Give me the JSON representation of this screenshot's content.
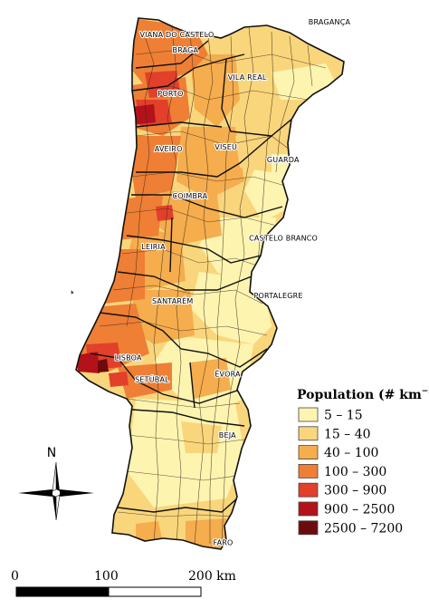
{
  "map": {
    "cities": [
      {
        "name": "VIANA DO CASTELO",
        "lon": -8.83,
        "lat": 41.69
      },
      {
        "name": "BRAGA",
        "lon": -8.43,
        "lat": 41.55
      },
      {
        "name": "VILA REAL",
        "lon": -7.75,
        "lat": 41.3
      },
      {
        "name": "BRAGANÇA",
        "lon": -6.76,
        "lat": 41.81
      },
      {
        "name": "PORTO",
        "lon": -8.61,
        "lat": 41.15
      },
      {
        "name": "VISEU",
        "lon": -7.91,
        "lat": 40.66
      },
      {
        "name": "AVEIRO",
        "lon": -8.65,
        "lat": 40.64
      },
      {
        "name": "GUARDA",
        "lon": -7.27,
        "lat": 40.54
      },
      {
        "name": "COIMBRA",
        "lon": -8.43,
        "lat": 40.21
      },
      {
        "name": "CASTELO BRANCO",
        "lon": -7.49,
        "lat": 39.82
      },
      {
        "name": "LEIRIA",
        "lon": -8.81,
        "lat": 39.74
      },
      {
        "name": "SANTARÉM",
        "lon": -8.68,
        "lat": 39.24
      },
      {
        "name": "PORTALEGRE",
        "lon": -7.43,
        "lat": 39.29
      },
      {
        "name": "LISBOA",
        "lon": -9.14,
        "lat": 38.72
      },
      {
        "name": "ÉVORA",
        "lon": -7.91,
        "lat": 38.57
      },
      {
        "name": "SETÚBAL",
        "lon": -8.89,
        "lat": 38.52
      },
      {
        "name": "BEJA",
        "lon": -7.86,
        "lat": 38.01
      },
      {
        "name": "FARO",
        "lon": -7.93,
        "lat": 37.02
      }
    ]
  },
  "legend": {
    "title": "Population (# km",
    "superscript": "−2",
    "title_close": ")",
    "classes": [
      {
        "label": "5 – 15",
        "color": "#fdf4b0"
      },
      {
        "label": "15 – 40",
        "color": "#f9d67c"
      },
      {
        "label": "40 – 100",
        "color": "#f5ad4e"
      },
      {
        "label": "100 – 300",
        "color": "#ee7f35"
      },
      {
        "label": "300 – 900",
        "color": "#e2402a"
      },
      {
        "label": "900 – 2500",
        "color": "#b4121a"
      },
      {
        "label": "2500 – 7200",
        "color": "#6e0a0e"
      }
    ]
  },
  "north_arrow": {
    "label": "N"
  },
  "scale_bar": {
    "ticks": [
      "0",
      "100",
      "200 km"
    ],
    "unit": "km",
    "max_km": 200
  }
}
